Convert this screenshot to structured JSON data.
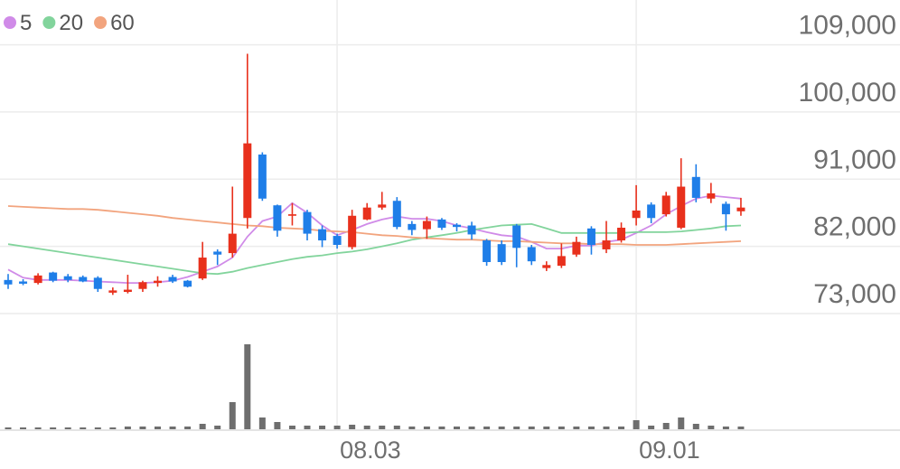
{
  "chart_data": {
    "type": "candlestick",
    "categories": [
      null,
      null,
      null,
      null,
      null,
      null,
      null,
      null,
      null,
      null,
      null,
      null,
      null,
      null,
      null,
      null,
      null,
      null,
      null,
      null,
      null,
      null,
      "08.03",
      null,
      null,
      null,
      null,
      null,
      null,
      null,
      null,
      null,
      null,
      null,
      null,
      null,
      null,
      null,
      null,
      null,
      null,
      null,
      "09.01",
      null,
      null,
      null,
      null,
      null,
      null,
      null
    ],
    "open": [
      77500,
      77300,
      77100,
      78500,
      78000,
      77900,
      77800,
      75800,
      75900,
      76300,
      77100,
      77900,
      77400,
      77700,
      81300,
      81100,
      85800,
      94300,
      87500,
      86100,
      86600,
      84300,
      83400,
      81900,
      85600,
      87200,
      88100,
      85000,
      84300,
      85600,
      84900,
      84800,
      82800,
      82300,
      84800,
      81900,
      79100,
      79400,
      80900,
      84400,
      81600,
      82800,
      85800,
      87600,
      86300,
      84500,
      91300,
      88400,
      87700,
      86700
    ],
    "high": [
      78300,
      77600,
      78400,
      78600,
      78300,
      78100,
      78000,
      76500,
      78200,
      77400,
      78000,
      78200,
      77500,
      82600,
      81600,
      90000,
      107800,
      94600,
      87600,
      87800,
      86900,
      84800,
      83700,
      86900,
      87800,
      89300,
      88600,
      85400,
      86000,
      85800,
      85100,
      85300,
      83000,
      82800,
      85000,
      82200,
      80000,
      82400,
      83300,
      84700,
      85400,
      85200,
      90200,
      87900,
      89300,
      93800,
      93000,
      90500,
      88000,
      88500
    ],
    "low": [
      76300,
      76800,
      76900,
      77200,
      77200,
      77200,
      75900,
      75500,
      75700,
      75900,
      76600,
      77100,
      76500,
      77500,
      79500,
      80500,
      84400,
      88100,
      83300,
      84800,
      82800,
      81900,
      81700,
      81600,
      85500,
      86900,
      84300,
      83500,
      83000,
      84200,
      84000,
      82900,
      79400,
      79500,
      79200,
      79500,
      78700,
      79100,
      80600,
      80900,
      81100,
      82500,
      84800,
      85100,
      86000,
      84300,
      87900,
      87800,
      84100,
      86100
    ],
    "close": [
      76900,
      77000,
      78100,
      77400,
      77500,
      77300,
      76300,
      76100,
      76200,
      77200,
      77400,
      77300,
      76600,
      80500,
      80900,
      83700,
      95800,
      88400,
      84100,
      86300,
      83700,
      82800,
      82200,
      86100,
      87200,
      87600,
      84600,
      84200,
      85400,
      84500,
      84600,
      83600,
      79900,
      79900,
      81800,
      80000,
      79500,
      80700,
      82600,
      82200,
      82800,
      84500,
      86800,
      85800,
      88800,
      90000,
      88500,
      89100,
      86300,
      87200
    ],
    "up_color": "#e8301c",
    "down_color": "#1f7ee8",
    "series": [
      {
        "name": "5",
        "color": "#d08be8",
        "values": [
          78900,
          77800,
          77500,
          77500,
          77500,
          77400,
          77300,
          77200,
          77100,
          77100,
          77200,
          77400,
          77900,
          78600,
          79300,
          80500,
          83300,
          85400,
          86000,
          87800,
          86500,
          84800,
          83500,
          84200,
          85000,
          85600,
          86000,
          85700,
          85700,
          85400,
          84800,
          84400,
          83900,
          83500,
          83300,
          82600,
          81700,
          81700,
          82100,
          82100,
          82600,
          82900,
          83800,
          84800,
          86300,
          87400,
          88400,
          88800,
          88600,
          88400
        ]
      },
      {
        "name": "20",
        "color": "#82d49c",
        "values": [
          82300,
          82000,
          81700,
          81400,
          81100,
          80800,
          80500,
          80200,
          79900,
          79600,
          79300,
          79000,
          78700,
          78400,
          78300,
          78600,
          79100,
          79500,
          79900,
          80300,
          80600,
          80800,
          81100,
          81300,
          81600,
          82000,
          82400,
          82900,
          83200,
          83500,
          83800,
          84200,
          84500,
          84800,
          84900,
          85000,
          84400,
          83800,
          83800,
          83800,
          83800,
          83800,
          83900,
          83900,
          83900,
          84000,
          84200,
          84400,
          84700,
          84800
        ]
      },
      {
        "name": "60",
        "color": "#f2a47e",
        "values": [
          87400,
          87300,
          87200,
          87100,
          87000,
          87000,
          86900,
          86700,
          86500,
          86300,
          86100,
          85800,
          85600,
          85400,
          85200,
          85000,
          84800,
          84700,
          84500,
          84400,
          84300,
          84100,
          84000,
          83900,
          83700,
          83500,
          83400,
          83200,
          83100,
          83000,
          82900,
          82900,
          82800,
          82700,
          82700,
          82600,
          82500,
          82400,
          82400,
          82300,
          82300,
          82300,
          82200,
          82200,
          82200,
          82300,
          82400,
          82500,
          82600,
          82700
        ]
      }
    ],
    "volume": {
      "color": "#6e6e6e",
      "values": [
        2,
        2,
        2,
        2,
        2,
        2,
        2,
        2,
        3,
        3,
        3,
        3,
        3,
        6,
        4,
        30,
        94,
        13,
        8,
        4,
        4,
        4,
        4,
        5,
        4,
        4,
        4,
        3,
        3,
        3,
        3,
        3,
        3,
        3,
        3,
        3,
        3,
        3,
        3,
        3,
        3,
        3,
        10,
        4,
        7,
        13,
        6,
        4,
        3,
        3
      ]
    },
    "ylim": [
      73000,
      115000
    ],
    "yticks": [
      {
        "value": 73000,
        "label": "73,000"
      },
      {
        "value": 82000,
        "label": "82,000"
      },
      {
        "value": 91000,
        "label": "91,000"
      },
      {
        "value": 100000,
        "label": "100,000"
      },
      {
        "value": 109000,
        "label": "109,000"
      }
    ],
    "grid": true
  }
}
